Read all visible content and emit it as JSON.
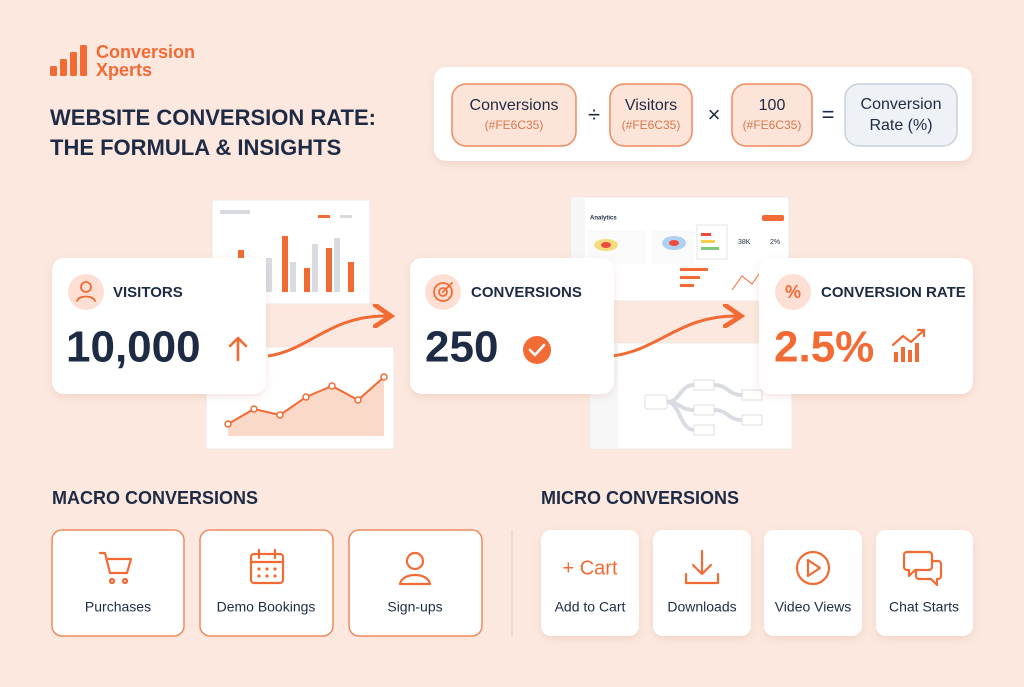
{
  "brand": {
    "name_line1": "Conversion",
    "name_line2": "Xperts"
  },
  "header": {
    "title_line1": "WEBSITE CONVERSION RATE:",
    "title_line2": "THE FORMULA & INSIGHTS"
  },
  "formula": {
    "terms": [
      {
        "label": "Conversions",
        "note": "(#FE6C35)"
      },
      {
        "label": "Visitors",
        "note": "(#FE6C35)"
      },
      {
        "label": "100",
        "note": "(#FE6C35)"
      }
    ],
    "operators": [
      "÷",
      "×",
      "="
    ],
    "result_line1": "Conversion",
    "result_line2": "Rate (%)"
  },
  "dashboard": {
    "title": "Analytics",
    "stat": "38K",
    "pct": "2%"
  },
  "metrics": [
    {
      "label": "VISITORS",
      "value": "10,000"
    },
    {
      "label": "CONVERSIONS",
      "value": "250"
    },
    {
      "label": "CONVERSION RATE",
      "value": "2.5%"
    }
  ],
  "macro": {
    "title": "MACRO CONVERSIONS",
    "items": [
      "Purchases",
      "Demo Bookings",
      "Sign-ups"
    ]
  },
  "micro": {
    "title": "MICRO CONVERSIONS",
    "icon_text": "+ Cart",
    "items": [
      "Add to Cart",
      "Downloads",
      "Video Views",
      "Chat Starts"
    ]
  }
}
